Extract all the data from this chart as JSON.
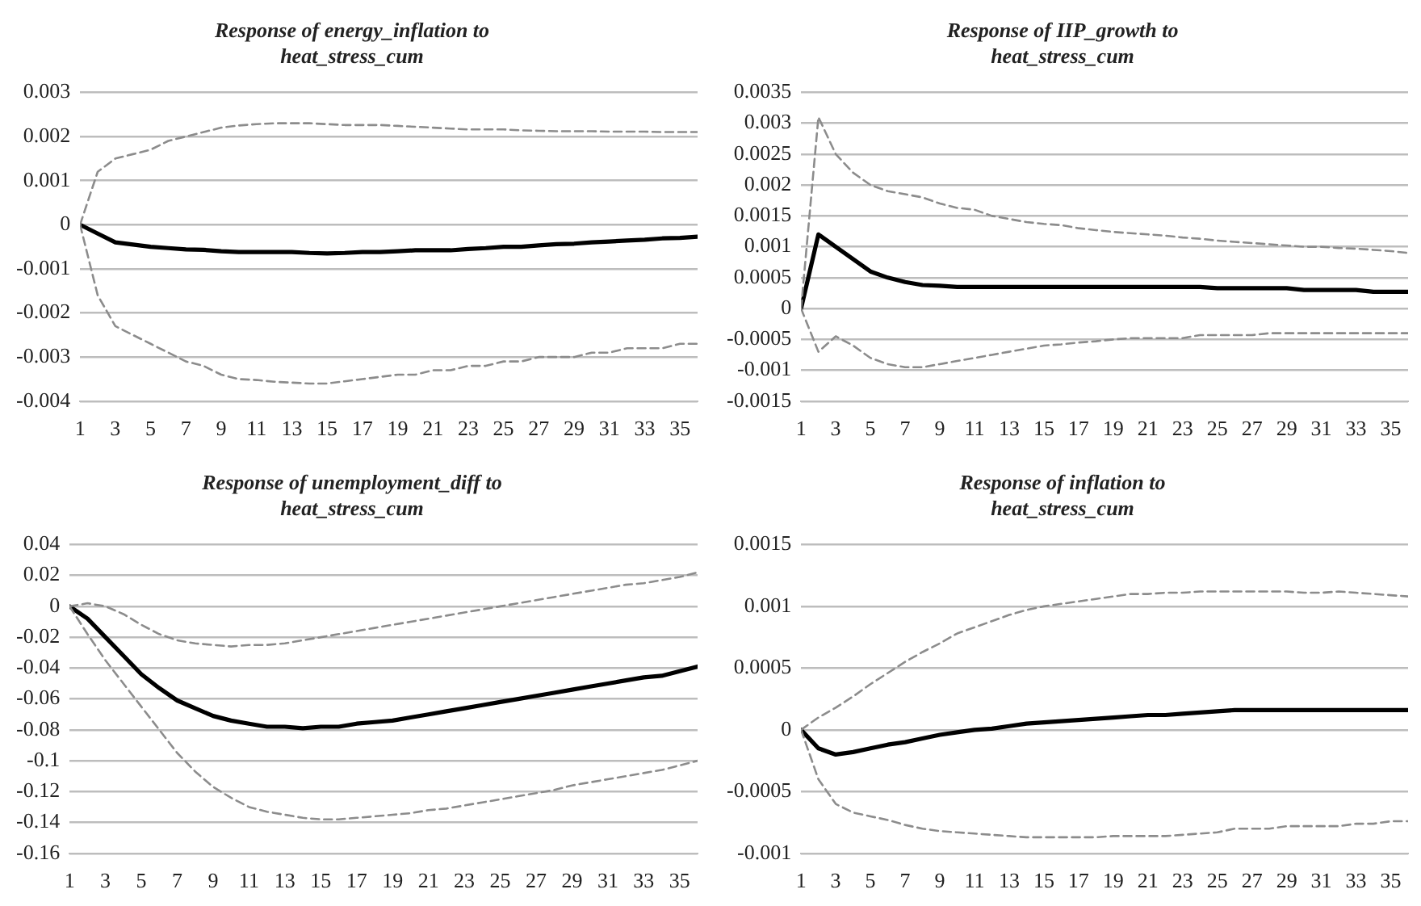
{
  "chart_data": [
    {
      "type": "line",
      "title": "Response of energy_inflation to\nheat_stress_cum",
      "x": [
        1,
        2,
        3,
        4,
        5,
        6,
        7,
        8,
        9,
        10,
        11,
        12,
        13,
        14,
        15,
        16,
        17,
        18,
        19,
        20,
        21,
        22,
        23,
        24,
        25,
        26,
        27,
        28,
        29,
        30,
        31,
        32,
        33,
        34,
        35,
        36
      ],
      "xlim": [
        1,
        36
      ],
      "xticks": [
        1,
        3,
        5,
        7,
        9,
        11,
        13,
        15,
        17,
        19,
        21,
        23,
        25,
        27,
        29,
        31,
        33,
        35
      ],
      "ylim": [
        -0.004,
        0.003
      ],
      "yticks": [
        -0.004,
        -0.003,
        -0.002,
        -0.001,
        0,
        0.001,
        0.002,
        0.003
      ],
      "grid": "y",
      "legend": false,
      "marker": "none",
      "series": [
        {
          "color": "#8c8c8c",
          "line_style": "dashed",
          "values": [
            0,
            0.0012,
            0.0015,
            0.0016,
            0.0017,
            0.0019,
            0.002,
            0.0021,
            0.0022,
            0.00225,
            0.00228,
            0.0023,
            0.0023,
            0.0023,
            0.00228,
            0.00226,
            0.00226,
            0.00226,
            0.00224,
            0.00222,
            0.0022,
            0.00218,
            0.00216,
            0.00216,
            0.00216,
            0.00214,
            0.00213,
            0.00212,
            0.00212,
            0.00212,
            0.00211,
            0.00211,
            0.00211,
            0.0021,
            0.0021,
            0.0021
          ]
        },
        {
          "color": "#8c8c8c",
          "line_style": "dashed",
          "values": [
            0,
            -0.0016,
            -0.0023,
            -0.0025,
            -0.0027,
            -0.0029,
            -0.0031,
            -0.0032,
            -0.0034,
            -0.0035,
            -0.00352,
            -0.00356,
            -0.00358,
            -0.0036,
            -0.0036,
            -0.00355,
            -0.0035,
            -0.00345,
            -0.0034,
            -0.0034,
            -0.0033,
            -0.0033,
            -0.0032,
            -0.0032,
            -0.0031,
            -0.0031,
            -0.003,
            -0.003,
            -0.003,
            -0.0029,
            -0.0029,
            -0.0028,
            -0.0028,
            -0.0028,
            -0.0027,
            -0.0027
          ]
        },
        {
          "color": "#000000",
          "line_style": "solid",
          "values": [
            0,
            -0.0002,
            -0.0004,
            -0.00045,
            -0.0005,
            -0.00053,
            -0.00056,
            -0.00057,
            -0.0006,
            -0.00062,
            -0.00062,
            -0.00062,
            -0.00062,
            -0.00064,
            -0.00065,
            -0.00064,
            -0.00062,
            -0.00062,
            -0.0006,
            -0.00058,
            -0.00058,
            -0.00058,
            -0.00055,
            -0.00053,
            -0.0005,
            -0.0005,
            -0.00047,
            -0.00044,
            -0.00043,
            -0.0004,
            -0.00038,
            -0.00036,
            -0.00034,
            -0.00031,
            -0.0003,
            -0.00027
          ]
        }
      ]
    },
    {
      "type": "line",
      "title": "Response of IIP_growth to\nheat_stress_cum",
      "x": [
        1,
        2,
        3,
        4,
        5,
        6,
        7,
        8,
        9,
        10,
        11,
        12,
        13,
        14,
        15,
        16,
        17,
        18,
        19,
        20,
        21,
        22,
        23,
        24,
        25,
        26,
        27,
        28,
        29,
        30,
        31,
        32,
        33,
        34,
        35,
        36
      ],
      "xlim": [
        1,
        36
      ],
      "xticks": [
        1,
        3,
        5,
        7,
        9,
        11,
        13,
        15,
        17,
        19,
        21,
        23,
        25,
        27,
        29,
        31,
        33,
        35
      ],
      "ylim": [
        -0.0015,
        0.0035
      ],
      "yticks": [
        -0.0015,
        -0.001,
        -0.0005,
        0,
        0.0005,
        0.001,
        0.0015,
        0.002,
        0.0025,
        0.003,
        0.0035
      ],
      "grid": "y",
      "legend": false,
      "marker": "none",
      "series": [
        {
          "color": "#8c8c8c",
          "line_style": "dashed",
          "values": [
            0,
            0.0031,
            0.0025,
            0.0022,
            0.002,
            0.0019,
            0.00185,
            0.0018,
            0.0017,
            0.00163,
            0.0016,
            0.0015,
            0.00145,
            0.0014,
            0.00137,
            0.00135,
            0.0013,
            0.00127,
            0.00124,
            0.00122,
            0.0012,
            0.00118,
            0.00115,
            0.00113,
            0.0011,
            0.00108,
            0.00106,
            0.00104,
            0.00102,
            0.001,
            0.001,
            0.00098,
            0.00097,
            0.00095,
            0.00093,
            0.0009
          ]
        },
        {
          "color": "#8c8c8c",
          "line_style": "dashed",
          "values": [
            0,
            -0.0007,
            -0.00045,
            -0.0006,
            -0.0008,
            -0.0009,
            -0.00095,
            -0.00095,
            -0.0009,
            -0.00085,
            -0.0008,
            -0.00075,
            -0.0007,
            -0.00065,
            -0.0006,
            -0.00058,
            -0.00055,
            -0.00053,
            -0.0005,
            -0.00048,
            -0.00048,
            -0.00048,
            -0.00048,
            -0.00043,
            -0.00043,
            -0.00043,
            -0.00043,
            -0.0004,
            -0.0004,
            -0.0004,
            -0.0004,
            -0.0004,
            -0.0004,
            -0.0004,
            -0.0004,
            -0.0004
          ]
        },
        {
          "color": "#000000",
          "line_style": "solid",
          "values": [
            0,
            0.0012,
            0.001,
            0.0008,
            0.0006,
            0.0005,
            0.00043,
            0.00038,
            0.00037,
            0.00035,
            0.00035,
            0.00035,
            0.00035,
            0.00035,
            0.00035,
            0.00035,
            0.00035,
            0.00035,
            0.00035,
            0.00035,
            0.00035,
            0.00035,
            0.00035,
            0.00035,
            0.00033,
            0.00033,
            0.00033,
            0.00033,
            0.00033,
            0.0003,
            0.0003,
            0.0003,
            0.0003,
            0.00027,
            0.00027,
            0.00027
          ]
        }
      ]
    },
    {
      "type": "line",
      "title": "Response of unemployment_diff to\nheat_stress_cum",
      "x": [
        1,
        2,
        3,
        4,
        5,
        6,
        7,
        8,
        9,
        10,
        11,
        12,
        13,
        14,
        15,
        16,
        17,
        18,
        19,
        20,
        21,
        22,
        23,
        24,
        25,
        26,
        27,
        28,
        29,
        30,
        31,
        32,
        33,
        34,
        35,
        36
      ],
      "xlim": [
        1,
        36
      ],
      "xticks": [
        1,
        3,
        5,
        7,
        9,
        11,
        13,
        15,
        17,
        19,
        21,
        23,
        25,
        27,
        29,
        31,
        33,
        35
      ],
      "ylim": [
        -0.16,
        0.04
      ],
      "yticks": [
        -0.16,
        -0.14,
        -0.12,
        -0.1,
        -0.08,
        -0.06,
        -0.04,
        -0.02,
        0,
        0.02,
        0.04
      ],
      "grid": "y",
      "legend": false,
      "marker": "none",
      "series": [
        {
          "color": "#8c8c8c",
          "line_style": "dashed",
          "values": [
            0,
            0.002,
            0,
            -0.005,
            -0.012,
            -0.018,
            -0.022,
            -0.024,
            -0.025,
            -0.026,
            -0.025,
            -0.025,
            -0.024,
            -0.022,
            -0.02,
            -0.018,
            -0.016,
            -0.014,
            -0.012,
            -0.01,
            -0.008,
            -0.006,
            -0.004,
            -0.002,
            0,
            0.002,
            0.004,
            0.006,
            0.008,
            0.01,
            0.012,
            0.014,
            0.015,
            0.017,
            0.019,
            0.022
          ]
        },
        {
          "color": "#8c8c8c",
          "line_style": "dashed",
          "values": [
            0,
            -0.018,
            -0.035,
            -0.05,
            -0.065,
            -0.08,
            -0.095,
            -0.107,
            -0.117,
            -0.124,
            -0.13,
            -0.133,
            -0.135,
            -0.137,
            -0.138,
            -0.138,
            -0.137,
            -0.136,
            -0.135,
            -0.134,
            -0.132,
            -0.131,
            -0.129,
            -0.127,
            -0.125,
            -0.123,
            -0.121,
            -0.119,
            -0.116,
            -0.114,
            -0.112,
            -0.11,
            -0.108,
            -0.106,
            -0.103,
            -0.1
          ]
        },
        {
          "color": "#000000",
          "line_style": "solid",
          "values": [
            0,
            -0.008,
            -0.02,
            -0.032,
            -0.044,
            -0.053,
            -0.061,
            -0.066,
            -0.071,
            -0.074,
            -0.076,
            -0.078,
            -0.078,
            -0.079,
            -0.078,
            -0.078,
            -0.076,
            -0.075,
            -0.074,
            -0.072,
            -0.07,
            -0.068,
            -0.066,
            -0.064,
            -0.062,
            -0.06,
            -0.058,
            -0.056,
            -0.054,
            -0.052,
            -0.05,
            -0.048,
            -0.046,
            -0.045,
            -0.042,
            -0.039
          ]
        }
      ]
    },
    {
      "type": "line",
      "title": "Response of inflation to\nheat_stress_cum",
      "x": [
        1,
        2,
        3,
        4,
        5,
        6,
        7,
        8,
        9,
        10,
        11,
        12,
        13,
        14,
        15,
        16,
        17,
        18,
        19,
        20,
        21,
        22,
        23,
        24,
        25,
        26,
        27,
        28,
        29,
        30,
        31,
        32,
        33,
        34,
        35,
        36
      ],
      "xlim": [
        1,
        36
      ],
      "xticks": [
        1,
        3,
        5,
        7,
        9,
        11,
        13,
        15,
        17,
        19,
        21,
        23,
        25,
        27,
        29,
        31,
        33,
        35
      ],
      "ylim": [
        -0.001,
        0.0015
      ],
      "yticks": [
        -0.001,
        -0.0005,
        0,
        0.0005,
        0.001,
        0.0015
      ],
      "grid": "y",
      "legend": false,
      "marker": "none",
      "series": [
        {
          "color": "#8c8c8c",
          "line_style": "dashed",
          "values": [
            0,
            0.0001,
            0.00018,
            0.00027,
            0.00037,
            0.00046,
            0.00055,
            0.00063,
            0.0007,
            0.00078,
            0.00083,
            0.00088,
            0.00093,
            0.00097,
            0.001,
            0.00102,
            0.00104,
            0.00106,
            0.00108,
            0.0011,
            0.0011,
            0.00111,
            0.00111,
            0.00112,
            0.00112,
            0.00112,
            0.00112,
            0.00112,
            0.00112,
            0.00111,
            0.00111,
            0.00112,
            0.00111,
            0.0011,
            0.00109,
            0.00108
          ]
        },
        {
          "color": "#8c8c8c",
          "line_style": "dashed",
          "values": [
            0,
            -0.0004,
            -0.0006,
            -0.00067,
            -0.0007,
            -0.00073,
            -0.00077,
            -0.0008,
            -0.00082,
            -0.00083,
            -0.00084,
            -0.00085,
            -0.00086,
            -0.00087,
            -0.00087,
            -0.00087,
            -0.00087,
            -0.00087,
            -0.00086,
            -0.00086,
            -0.00086,
            -0.00086,
            -0.00085,
            -0.00084,
            -0.00083,
            -0.0008,
            -0.0008,
            -0.0008,
            -0.00078,
            -0.00078,
            -0.00078,
            -0.00078,
            -0.00076,
            -0.00076,
            -0.00074,
            -0.00074
          ]
        },
        {
          "color": "#000000",
          "line_style": "solid",
          "values": [
            0,
            -0.00015,
            -0.0002,
            -0.00018,
            -0.00015,
            -0.00012,
            -0.0001,
            -7e-05,
            -4e-05,
            -2e-05,
            0,
            1e-05,
            3e-05,
            5e-05,
            6e-05,
            7e-05,
            8e-05,
            9e-05,
            0.0001,
            0.00011,
            0.00012,
            0.00012,
            0.00013,
            0.00014,
            0.00015,
            0.00016,
            0.00016,
            0.00016,
            0.00016,
            0.00016,
            0.00016,
            0.00016,
            0.00016,
            0.00016,
            0.00016,
            0.00016
          ]
        }
      ]
    }
  ]
}
